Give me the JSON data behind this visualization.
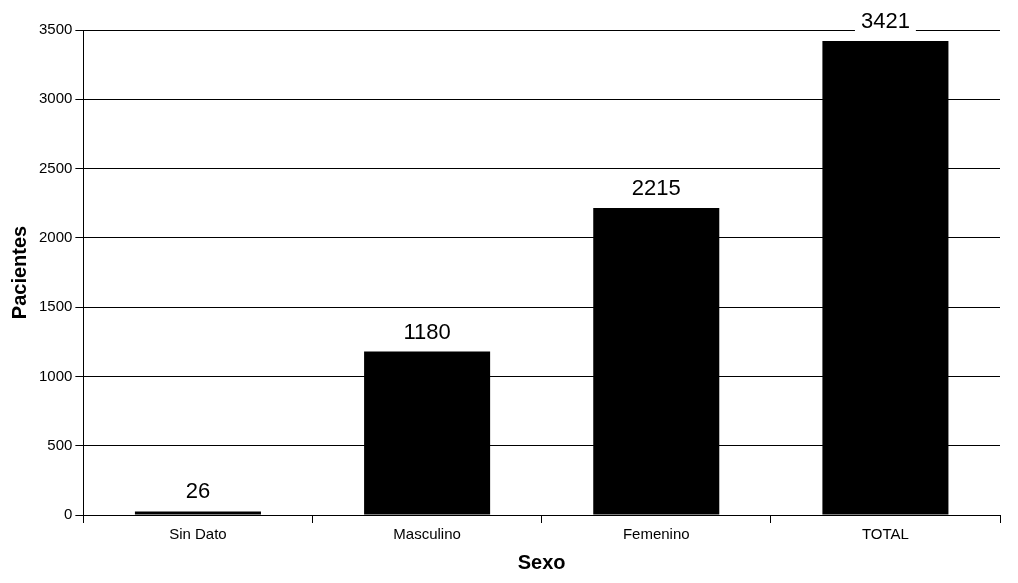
{
  "chart_data": {
    "type": "bar",
    "xlabel": "Sexo",
    "ylabel": "Pacientes",
    "categories": [
      "Sin Dato",
      "Masculino",
      "Femenino",
      "TOTAL"
    ],
    "values": [
      26,
      1180,
      2215,
      3421
    ],
    "color": "#000000",
    "ylim": [
      0,
      3500
    ],
    "yticks": [
      0,
      500,
      1000,
      1500,
      2000,
      2500,
      3000,
      3500
    ],
    "grid": "y",
    "data_labels": true,
    "legend": false
  }
}
